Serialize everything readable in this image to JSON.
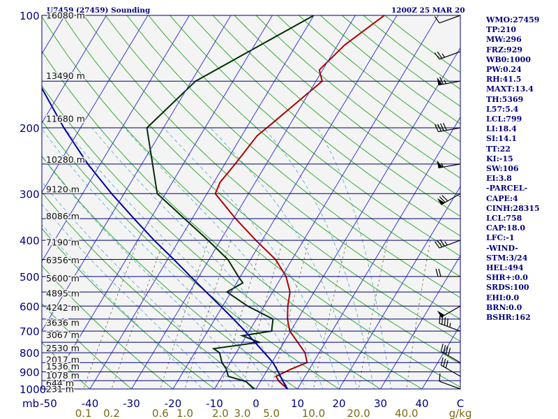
{
  "header": {
    "station": "U7459 (27459) Sounding",
    "time": "1200Z 25 MAR 20"
  },
  "chart_data": {
    "type": "line",
    "title": "U7459 (27459) Sounding",
    "subtitle": "1200Z 25 MAR 20",
    "xlabel_left": "mb",
    "xlabel_right": "C",
    "mixing_ratio_unit": "g/kg",
    "xlim": [
      -50,
      50
    ],
    "ylim": [
      1000,
      100
    ],
    "y_scale": "log",
    "pressure_ticks": [
      100,
      200,
      300,
      400,
      500,
      600,
      700,
      800,
      900,
      1000
    ],
    "temp_ticks": [
      -50,
      -40,
      -30,
      -20,
      -10,
      0,
      10,
      20,
      30,
      40
    ],
    "mixing_ratio_ticks": [
      "0.1",
      "0.2",
      "0.6",
      "1.0",
      "2.0",
      "3.0",
      "5.0",
      "10.0",
      "20.0",
      "40.0"
    ],
    "mixing_ratio_values": [
      0.1,
      0.2,
      0.6,
      1.0,
      2.0,
      3.0,
      5.0,
      10.0,
      20.0,
      40.0
    ],
    "height_labels": [
      {
        "p": 100,
        "label": "16080 m"
      },
      {
        "p": 145,
        "label": "13490 m"
      },
      {
        "p": 189,
        "label": "11680 m"
      },
      {
        "p": 243,
        "label": "10280 m"
      },
      {
        "p": 292,
        "label": "9120 m"
      },
      {
        "p": 345,
        "label": "8086 m"
      },
      {
        "p": 405,
        "label": "7190 m"
      },
      {
        "p": 452,
        "label": "6356 m"
      },
      {
        "p": 506,
        "label": "5600 m"
      },
      {
        "p": 554,
        "label": "4895 m"
      },
      {
        "p": 606,
        "label": "4242 m"
      },
      {
        "p": 664,
        "label": "3636 m"
      },
      {
        "p": 716,
        "label": "3067 m"
      },
      {
        "p": 778,
        "label": "2530 m"
      },
      {
        "p": 835,
        "label": "2017 m"
      },
      {
        "p": 870,
        "label": "1536 m"
      },
      {
        "p": 920,
        "label": "1078 m"
      },
      {
        "p": 965,
        "label": "644 m"
      },
      {
        "p": 1000,
        "label": "231 m"
      }
    ],
    "series": [
      {
        "name": "Temperature",
        "color": "#b00000",
        "points": [
          [
            1000,
            7.6
          ],
          [
            955,
            4.5
          ],
          [
            925,
            3.0
          ],
          [
            885,
            5.6
          ],
          [
            850,
            8.5
          ],
          [
            800,
            6.6
          ],
          [
            700,
            -0.2
          ],
          [
            650,
            -2.5
          ],
          [
            600,
            -4.3
          ],
          [
            550,
            -5.8
          ],
          [
            500,
            -9.0
          ],
          [
            450,
            -14.0
          ],
          [
            400,
            -21.5
          ],
          [
            350,
            -29.5
          ],
          [
            300,
            -38.0
          ],
          [
            280,
            -38.5
          ],
          [
            250,
            -37.5
          ],
          [
            210,
            -36.3
          ],
          [
            195,
            -34.5
          ],
          [
            150,
            -28.5
          ],
          [
            140,
            -30.8
          ],
          [
            120,
            -28.3
          ],
          [
            100,
            -23.0
          ]
        ]
      },
      {
        "name": "Dewpoint",
        "color": "#003000",
        "points": [
          [
            1000,
            -0.5
          ],
          [
            955,
            -3.5
          ],
          [
            925,
            -8.5
          ],
          [
            885,
            -10.0
          ],
          [
            850,
            -12.0
          ],
          [
            800,
            -14.0
          ],
          [
            780,
            -16.0
          ],
          [
            750,
            -6.0
          ],
          [
            720,
            -11.0
          ],
          [
            700,
            -4.6
          ],
          [
            650,
            -6.0
          ],
          [
            600,
            -14.0
          ],
          [
            550,
            -21.0
          ],
          [
            520,
            -18.5
          ],
          [
            500,
            -20.5
          ],
          [
            450,
            -25.5
          ],
          [
            400,
            -33.0
          ],
          [
            300,
            -52.0
          ],
          [
            200,
            -64.0
          ],
          [
            150,
            -59.0
          ],
          [
            100,
            -40.0
          ]
        ]
      },
      {
        "name": "Parcel",
        "color": "#0000a0",
        "points": [
          [
            1000,
            7.6
          ],
          [
            950,
            5.2
          ],
          [
            900,
            2.9
          ],
          [
            850,
            0.3
          ],
          [
            800,
            -3.2
          ],
          [
            750,
            -7.0
          ],
          [
            700,
            -11.0
          ],
          [
            650,
            -15.5
          ],
          [
            600,
            -20.5
          ],
          [
            550,
            -26.0
          ],
          [
            500,
            -32.0
          ],
          [
            450,
            -38.5
          ],
          [
            400,
            -46.0
          ],
          [
            350,
            -54.0
          ],
          [
            300,
            -63.0
          ],
          [
            250,
            -73.0
          ],
          [
            200,
            -84.0
          ],
          [
            150,
            -97.0
          ],
          [
            120,
            -106.0
          ]
        ]
      }
    ],
    "wind_barbs": [
      {
        "p": 1000,
        "dir": 290,
        "speed": 10
      },
      {
        "p": 925,
        "dir": 300,
        "speed": 30
      },
      {
        "p": 850,
        "dir": 300,
        "speed": 40
      },
      {
        "p": 700,
        "dir": 290,
        "speed": 45
      },
      {
        "p": 600,
        "dir": 240,
        "speed": 50
      },
      {
        "p": 500,
        "dir": 270,
        "speed": 20
      },
      {
        "p": 400,
        "dir": 250,
        "speed": 35
      },
      {
        "p": 300,
        "dir": 240,
        "speed": 70
      },
      {
        "p": 250,
        "dir": 260,
        "speed": 55
      },
      {
        "p": 200,
        "dir": 260,
        "speed": 40
      },
      {
        "p": 150,
        "dir": 260,
        "speed": 65
      },
      {
        "p": 125,
        "dir": 250,
        "speed": 25
      },
      {
        "p": 100,
        "dir": 250,
        "speed": 10
      }
    ],
    "grid": true
  },
  "indices": [
    "WMO:27459",
    "TP:210",
    "MW:296",
    "FRZ:929",
    "WB0:1000",
    "PW:0.24",
    "RH:41.5",
    "MAXT:13.4",
    "TH:5369",
    "L57:5.4",
    "LCL:799",
    "LI:18.4",
    "SI:14.1",
    "TT:22",
    "KI:-15",
    "SW:106",
    "EI:3.8",
    "-PARCEL-",
    "CAPE:4",
    "CINH:28315",
    "LCL:758",
    "CAP:18.0",
    "LFC:-1",
    "-WIND-",
    "STM:3/24",
    "HEL:494",
    "SHR+:0.0",
    "SRDS:100",
    "EHI:0.0",
    "BRN:0.0",
    "BSHR:162"
  ],
  "colors": {
    "isobar": "#00007a",
    "isotherm": "#3a3acb",
    "dry_adiabat": "#1ea51e",
    "moist_adiabat": "#4aa8c8",
    "mixing_ratio": "#6b6b3a",
    "mixing_ratio_label": "#7a6a14",
    "text": "#000080",
    "plot_bg": "#f4f4f4"
  }
}
